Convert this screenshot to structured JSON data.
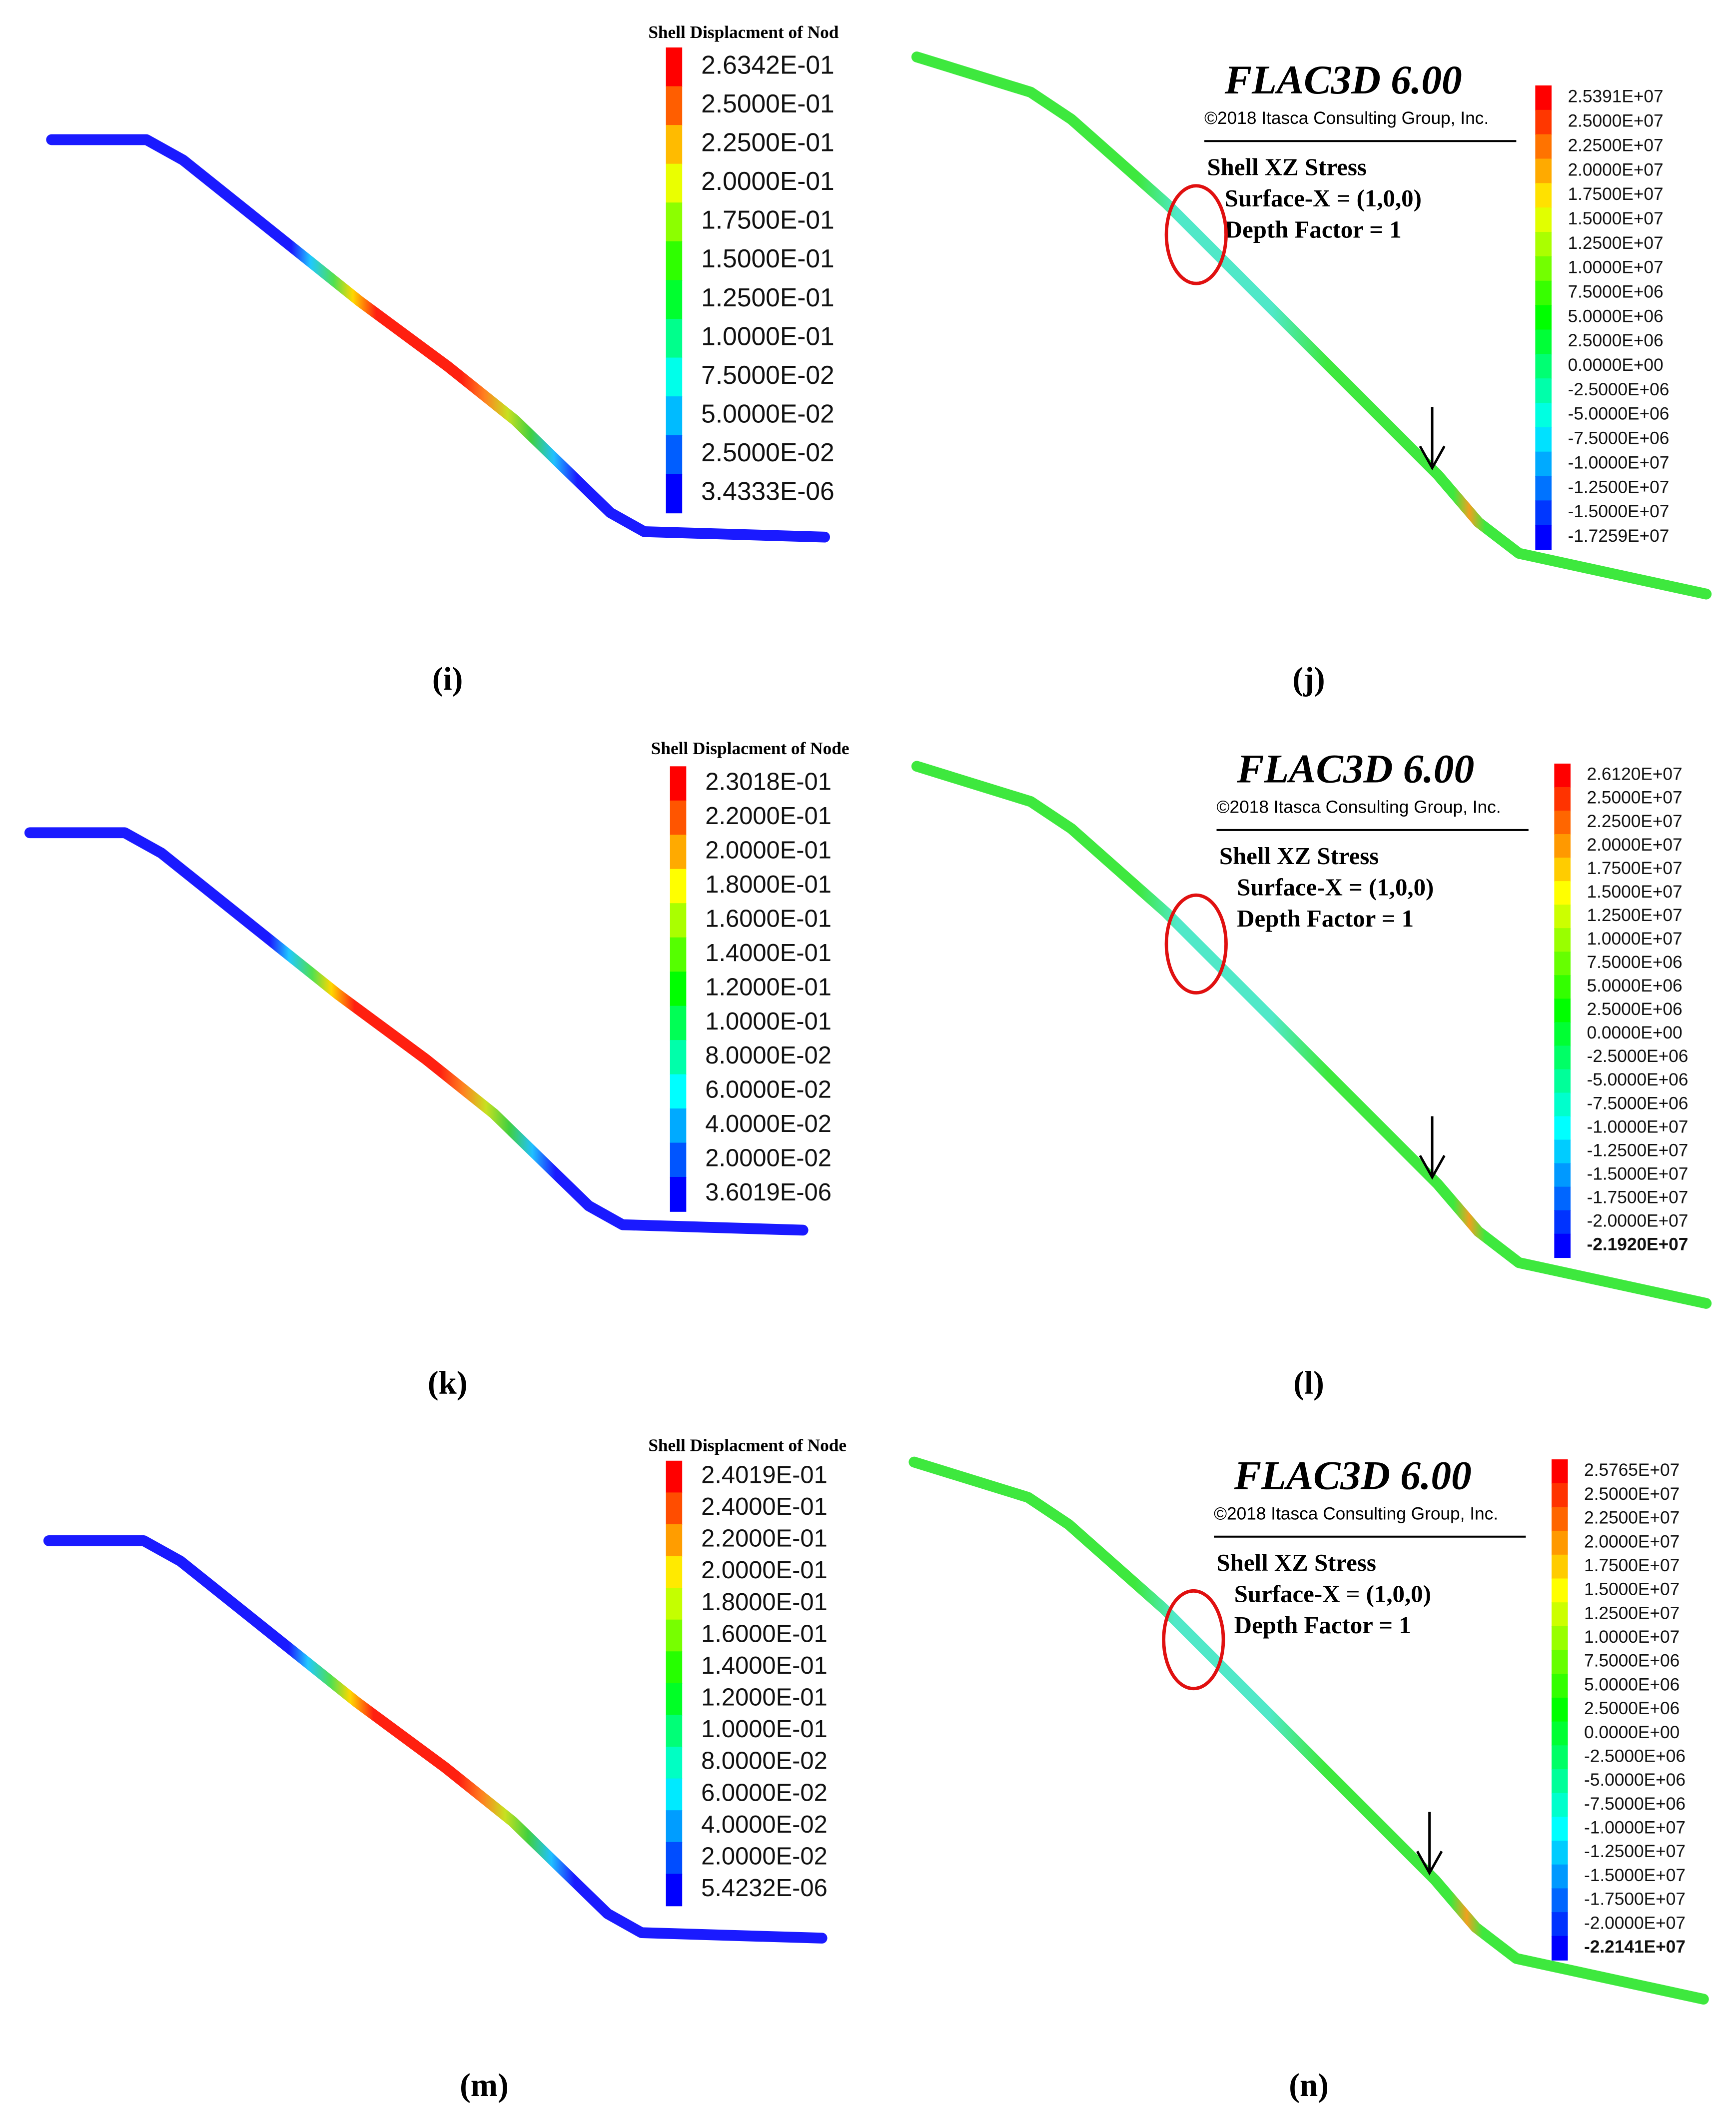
{
  "panels": [
    {
      "caption": "(i)",
      "legend_title": "Shell Displacment of Nod",
      "legend_labels": [
        "2.6342E-01",
        "2.5000E-01",
        "2.2500E-01",
        "2.0000E-01",
        "1.7500E-01",
        "1.5000E-01",
        "1.2500E-01",
        "1.0000E-01",
        "7.5000E-02",
        "5.0000E-02",
        "2.5000E-02",
        "3.4333E-06"
      ]
    },
    {
      "caption": "(j)",
      "software": "FLAC3D 6.00",
      "copyright": "©2018 Itasca Consulting Group, Inc.",
      "plot_lines": [
        "Shell XZ Stress",
        "Surface-X = (1,0,0)",
        "Depth Factor = 1"
      ],
      "legend_labels": [
        "2.5391E+07",
        "2.5000E+07",
        "2.2500E+07",
        "2.0000E+07",
        "1.7500E+07",
        "1.5000E+07",
        "1.2500E+07",
        "1.0000E+07",
        "7.5000E+06",
        "5.0000E+06",
        "2.5000E+06",
        "0.0000E+00",
        "-2.5000E+06",
        "-5.0000E+06",
        "-7.5000E+06",
        "-1.0000E+07",
        "-1.2500E+07",
        "-1.5000E+07",
        "-1.7259E+07"
      ]
    },
    {
      "caption": "(k)",
      "legend_title": "Shell Displacment of Node",
      "legend_labels": [
        "2.3018E-01",
        "2.2000E-01",
        "2.0000E-01",
        "1.8000E-01",
        "1.6000E-01",
        "1.4000E-01",
        "1.2000E-01",
        "1.0000E-01",
        "8.0000E-02",
        "6.0000E-02",
        "4.0000E-02",
        "2.0000E-02",
        "3.6019E-06"
      ]
    },
    {
      "caption": "(l)",
      "software": "FLAC3D 6.00",
      "copyright": "©2018 Itasca Consulting Group, Inc.",
      "plot_lines": [
        "Shell XZ Stress",
        "Surface-X = (1,0,0)",
        "Depth Factor = 1"
      ],
      "legend_labels": [
        "2.6120E+07",
        "2.5000E+07",
        "2.2500E+07",
        "2.0000E+07",
        "1.7500E+07",
        "1.5000E+07",
        "1.2500E+07",
        "1.0000E+07",
        "7.5000E+06",
        "5.0000E+06",
        "2.5000E+06",
        "0.0000E+00",
        "-2.5000E+06",
        "-5.0000E+06",
        "-7.5000E+06",
        "-1.0000E+07",
        "-1.2500E+07",
        "-1.5000E+07",
        "-1.7500E+07",
        "-2.0000E+07",
        "-2.1920E+07"
      ]
    },
    {
      "caption": "(m)",
      "legend_title": "Shell Displacment of Node",
      "legend_labels": [
        "2.4019E-01",
        "2.4000E-01",
        "2.2000E-01",
        "2.0000E-01",
        "1.8000E-01",
        "1.6000E-01",
        "1.4000E-01",
        "1.2000E-01",
        "1.0000E-01",
        "8.0000E-02",
        "6.0000E-02",
        "4.0000E-02",
        "2.0000E-02",
        "5.4232E-06"
      ]
    },
    {
      "caption": "(n)",
      "software": "FLAC3D 6.00",
      "copyright": "©2018 Itasca Consulting Group, Inc.",
      "plot_lines": [
        "Shell XZ Stress",
        "Surface-X = (1,0,0)",
        "Depth Factor = 1"
      ],
      "legend_labels": [
        "2.5765E+07",
        "2.5000E+07",
        "2.2500E+07",
        "2.0000E+07",
        "1.7500E+07",
        "1.5000E+07",
        "1.2500E+07",
        "1.0000E+07",
        "7.5000E+06",
        "5.0000E+06",
        "2.5000E+06",
        "0.0000E+00",
        "-2.5000E+06",
        "-5.0000E+06",
        "-7.5000E+06",
        "-1.0000E+07",
        "-1.2500E+07",
        "-1.5000E+07",
        "-1.7500E+07",
        "-2.0000E+07",
        "-2.2141E+07"
      ]
    }
  ]
}
